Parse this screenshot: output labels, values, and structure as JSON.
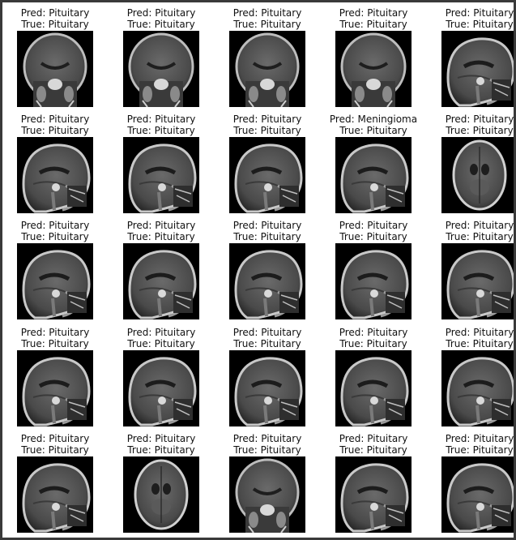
{
  "figure": {
    "prefix_pred": "Pred:",
    "prefix_true": "True:",
    "rows": [
      [
        {
          "pred": "Pituitary",
          "true": "Pituitary",
          "view": "coronal"
        },
        {
          "pred": "Pituitary",
          "true": "Pituitary",
          "view": "coronal"
        },
        {
          "pred": "Pituitary",
          "true": "Pituitary",
          "view": "coronal"
        },
        {
          "pred": "Pituitary",
          "true": "Pituitary",
          "view": "coronal"
        },
        {
          "pred": "Pituitary",
          "true": "Pituitary",
          "view": "sagittal"
        }
      ],
      [
        {
          "pred": "Pituitary",
          "true": "Pituitary",
          "view": "sagittal"
        },
        {
          "pred": "Pituitary",
          "true": "Pituitary",
          "view": "sagittal"
        },
        {
          "pred": "Pituitary",
          "true": "Pituitary",
          "view": "sagittal"
        },
        {
          "pred": "Meningioma",
          "true": "Pituitary",
          "view": "sagittal"
        },
        {
          "pred": "Pituitary",
          "true": "Pituitary",
          "view": "axial"
        }
      ],
      [
        {
          "pred": "Pituitary",
          "true": "Pituitary",
          "view": "sagittal"
        },
        {
          "pred": "Pituitary",
          "true": "Pituitary",
          "view": "sagittal"
        },
        {
          "pred": "Pituitary",
          "true": "Pituitary",
          "view": "sagittal"
        },
        {
          "pred": "Pituitary",
          "true": "Pituitary",
          "view": "sagittal"
        },
        {
          "pred": "Pituitary",
          "true": "Pituitary",
          "view": "sagittal"
        }
      ],
      [
        {
          "pred": "Pituitary",
          "true": "Pituitary",
          "view": "sagittal"
        },
        {
          "pred": "Pituitary",
          "true": "Pituitary",
          "view": "sagittal"
        },
        {
          "pred": "Pituitary",
          "true": "Pituitary",
          "view": "sagittal"
        },
        {
          "pred": "Pituitary",
          "true": "Pituitary",
          "view": "sagittal"
        },
        {
          "pred": "Pituitary",
          "true": "Pituitary",
          "view": "sagittal"
        }
      ],
      [
        {
          "pred": "Pituitary",
          "true": "Pituitary",
          "view": "sagittal"
        },
        {
          "pred": "Pituitary",
          "true": "Pituitary",
          "view": "axial"
        },
        {
          "pred": "Pituitary",
          "true": "Pituitary",
          "view": "coronal"
        },
        {
          "pred": "Pituitary",
          "true": "Pituitary",
          "view": "sagittal"
        },
        {
          "pred": "Pituitary",
          "true": "Pituitary",
          "view": "sagittal"
        }
      ]
    ]
  }
}
